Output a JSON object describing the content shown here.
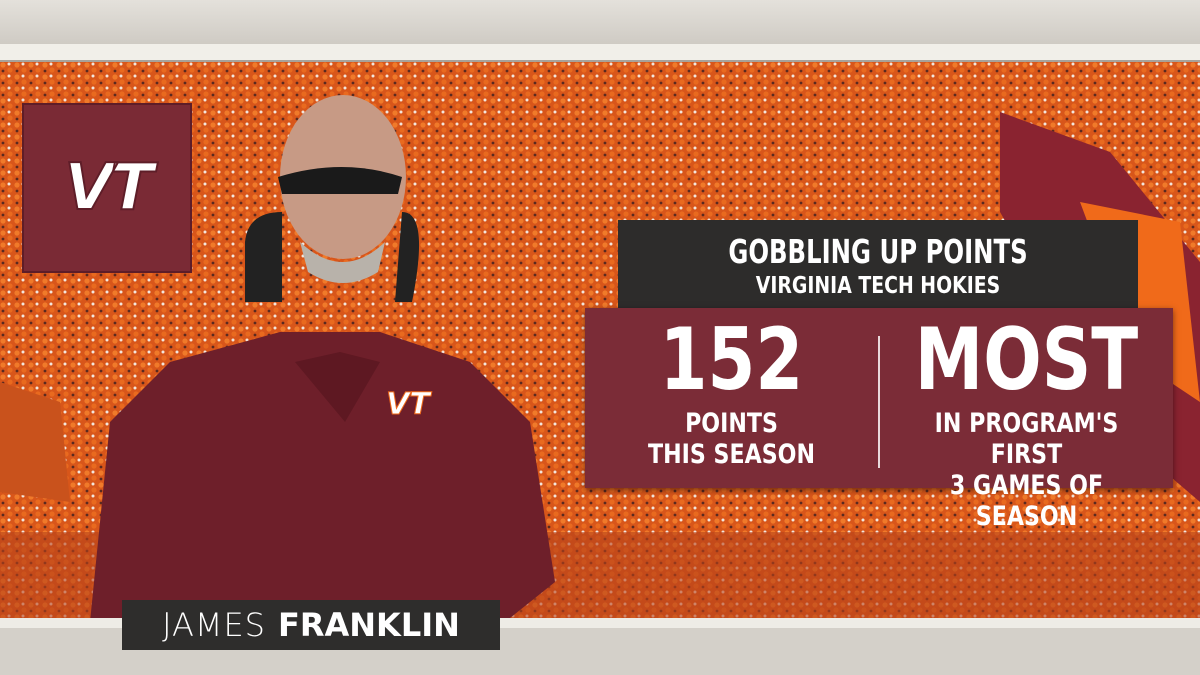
{
  "header": {
    "title": "GOBBLING UP POINTS",
    "subtitle": "VIRGINIA TECH HOKIES"
  },
  "stats": [
    {
      "value": 152,
      "label_lines": [
        "POINTS",
        "THIS SEASON"
      ]
    },
    {
      "value": "MOST",
      "label_lines": [
        "IN PROGRAM'S FIRST",
        "3 GAMES OF SEASON"
      ]
    }
  ],
  "name_plate": {
    "first": "JAMES",
    "last": "FRANKLIN"
  },
  "logo": {
    "text": "VT"
  }
}
